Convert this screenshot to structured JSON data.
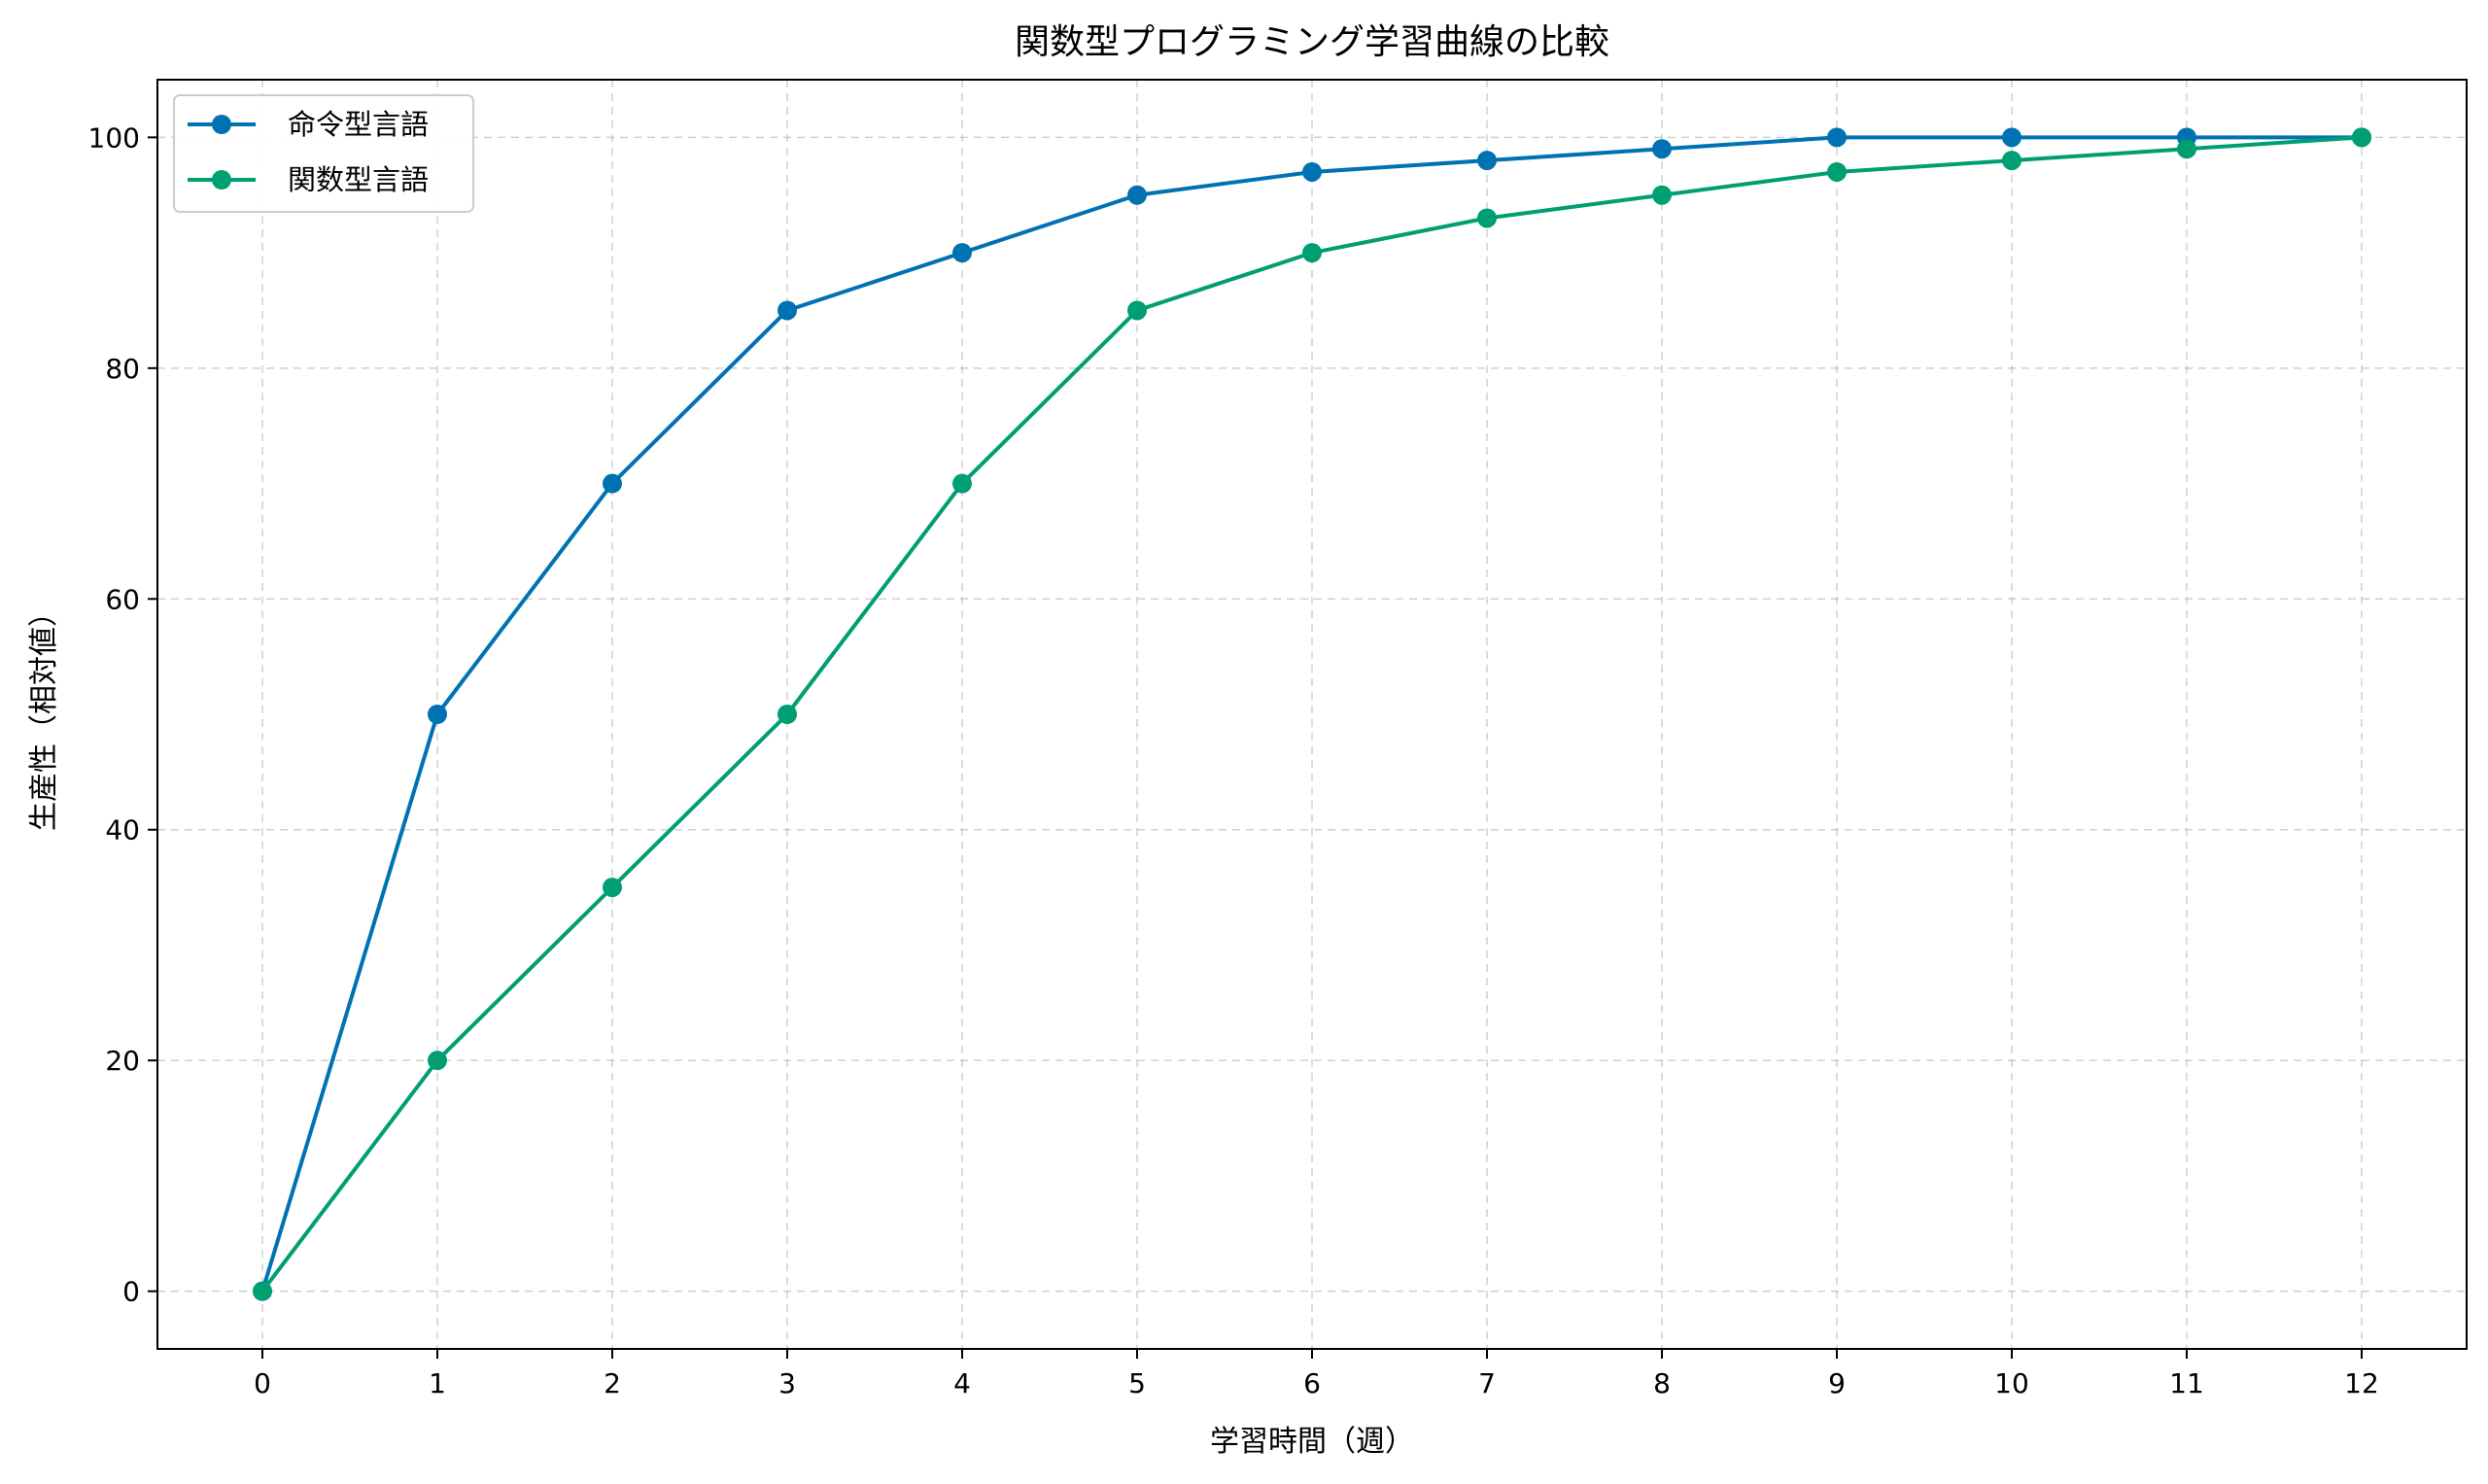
{
  "chart_data": {
    "type": "line",
    "title": "関数型プログラミング学習曲線の比較",
    "xlabel": "学習時間（週）",
    "ylabel": "生産性（相対値）",
    "x": [
      0,
      1,
      2,
      3,
      4,
      5,
      6,
      7,
      8,
      9,
      10,
      11,
      12
    ],
    "xlim": [
      -0.6,
      12.6
    ],
    "ylim": [
      -5,
      105
    ],
    "xticks": [
      0,
      1,
      2,
      3,
      4,
      5,
      6,
      7,
      8,
      9,
      10,
      11,
      12
    ],
    "yticks": [
      0,
      20,
      40,
      60,
      80,
      100
    ],
    "grid": true,
    "legend_position": "top-left",
    "marker": "circle",
    "series": [
      {
        "name": "命令型言語",
        "color": "#0072B2",
        "values": [
          0,
          50,
          70,
          85,
          90,
          95,
          97,
          98,
          99,
          100,
          100,
          100,
          100
        ]
      },
      {
        "name": "関数型言語",
        "color": "#009E73",
        "values": [
          0,
          20,
          35,
          50,
          70,
          85,
          90,
          93,
          95,
          97,
          98,
          99,
          100
        ]
      }
    ]
  }
}
